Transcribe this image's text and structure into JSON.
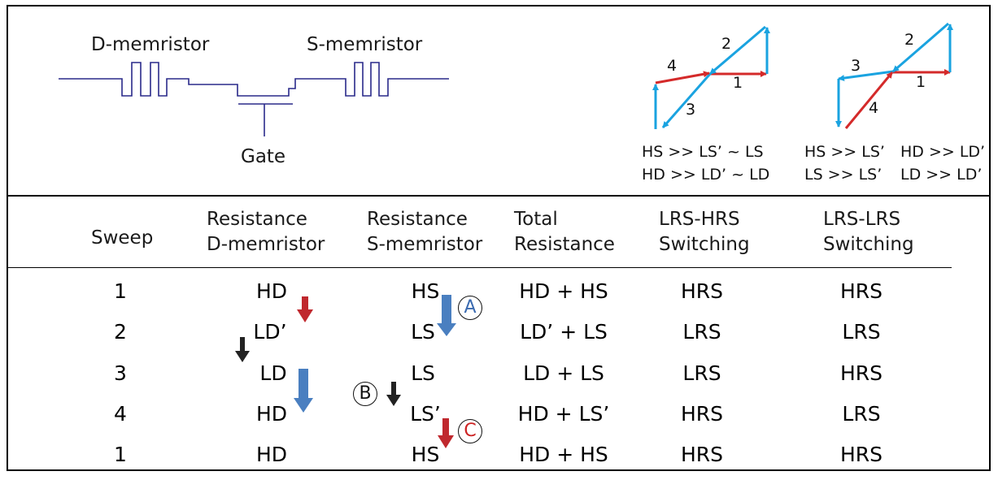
{
  "circuit": {
    "d_label": "D-memristor",
    "s_label": "S-memristor",
    "gate_label": "Gate"
  },
  "loops": {
    "loop1": {
      "labels": [
        "1",
        "2",
        "3",
        "4"
      ],
      "conditions": [
        "HS >> LS’ ~ LS",
        "HD >> LD’ ~ LD"
      ]
    },
    "loop2": {
      "labels": [
        "1",
        "2",
        "3",
        "4"
      ],
      "conditions": [
        "HS >> LS’",
        "HD >> LD’",
        "LS >> LS’",
        "LD >> LD’"
      ]
    }
  },
  "colors": {
    "circuit_line": "#2a2a8a",
    "loop_blue": "#1aa3e0",
    "loop_red": "#d42a2a",
    "arrow_blue": "#4a7fc0",
    "arrow_red": "#c0282e",
    "arrow_black": "#222222",
    "circle_red_text": "#cc2222",
    "circle_blue_text": "#3a6ab0"
  },
  "table": {
    "headers": [
      [
        "Sweep"
      ],
      [
        "Resistance",
        "D-memristor"
      ],
      [
        "Resistance",
        "S-memristor"
      ],
      [
        "Total",
        "Resistance"
      ],
      [
        "LRS-HRS",
        "Switching"
      ],
      [
        "LRS-LRS",
        "Switching"
      ]
    ],
    "rows": [
      [
        "1",
        "HD",
        "HS",
        "HD + HS",
        "HRS",
        "HRS"
      ],
      [
        "2",
        "LD’",
        "LS",
        "LD’ + LS",
        "LRS",
        "LRS"
      ],
      [
        "3",
        "LD",
        "LS",
        "LD + LS",
        "LRS",
        "HRS"
      ],
      [
        "4",
        "HD",
        "LS’",
        "HD + LS’",
        "HRS",
        "LRS"
      ],
      [
        "1",
        "HD",
        "HS",
        "HD + HS",
        "HRS",
        "HRS"
      ]
    ],
    "annotations": {
      "a": "A",
      "b": "B",
      "c": "C"
    }
  }
}
